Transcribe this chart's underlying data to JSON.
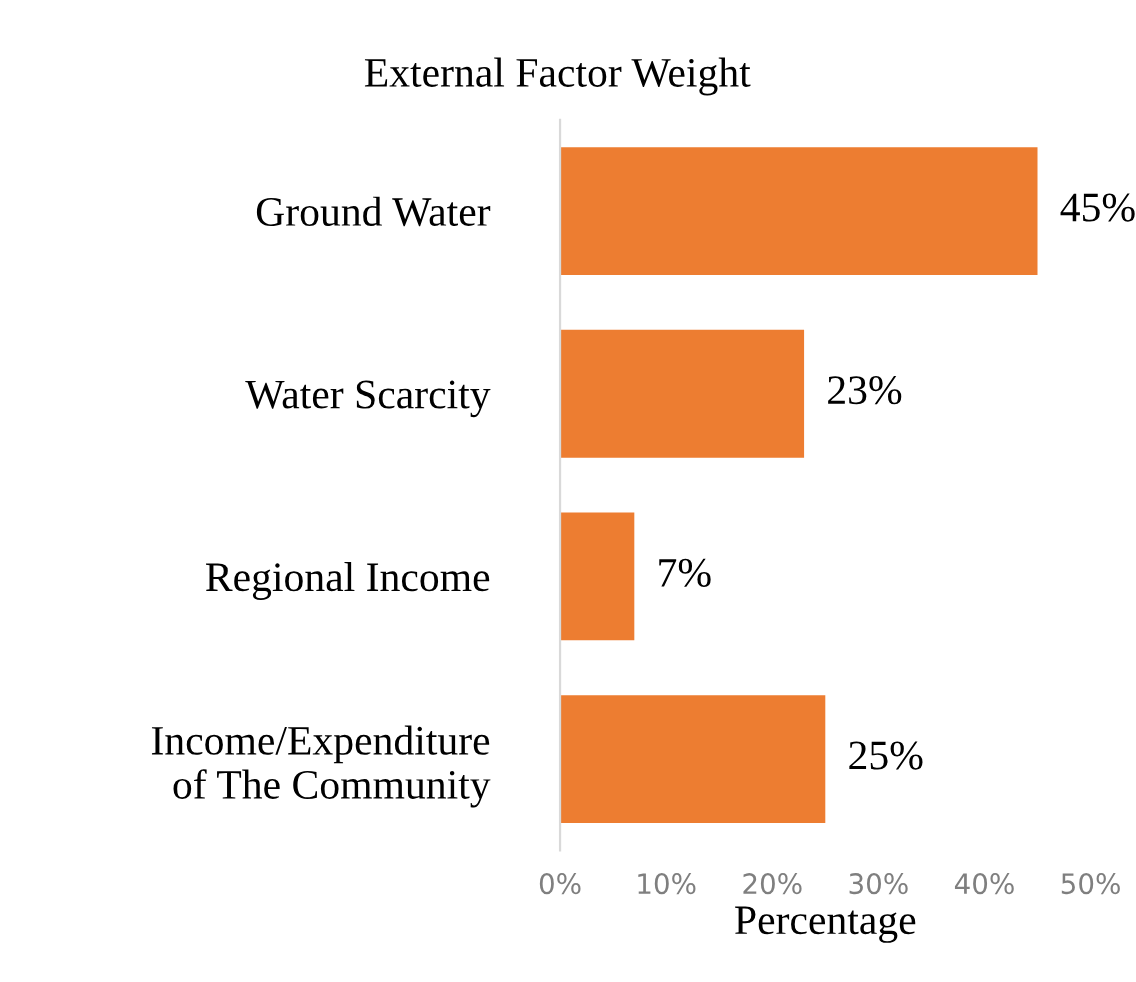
{
  "chart_data": {
    "type": "bar",
    "orientation": "horizontal",
    "title": "External Factor Weight",
    "xlabel": "Percentage",
    "categories": [
      "Ground Water",
      "Water Scarcity",
      "Regional Income",
      "Income/Expenditure\nof The Community"
    ],
    "values": [
      45,
      23,
      7,
      25
    ],
    "value_labels": [
      "45%",
      "23%",
      "7%",
      "25%"
    ],
    "color": "#ed7d31",
    "xlim": [
      0,
      50
    ],
    "xticks": [
      {
        "value": 0,
        "label": "0%"
      },
      {
        "value": 10,
        "label": "10%"
      },
      {
        "value": 20,
        "label": "20%"
      },
      {
        "value": 30,
        "label": "30%"
      },
      {
        "value": 40,
        "label": "40%"
      },
      {
        "value": 50,
        "label": "50%"
      }
    ],
    "grid": false,
    "legend": false
  }
}
